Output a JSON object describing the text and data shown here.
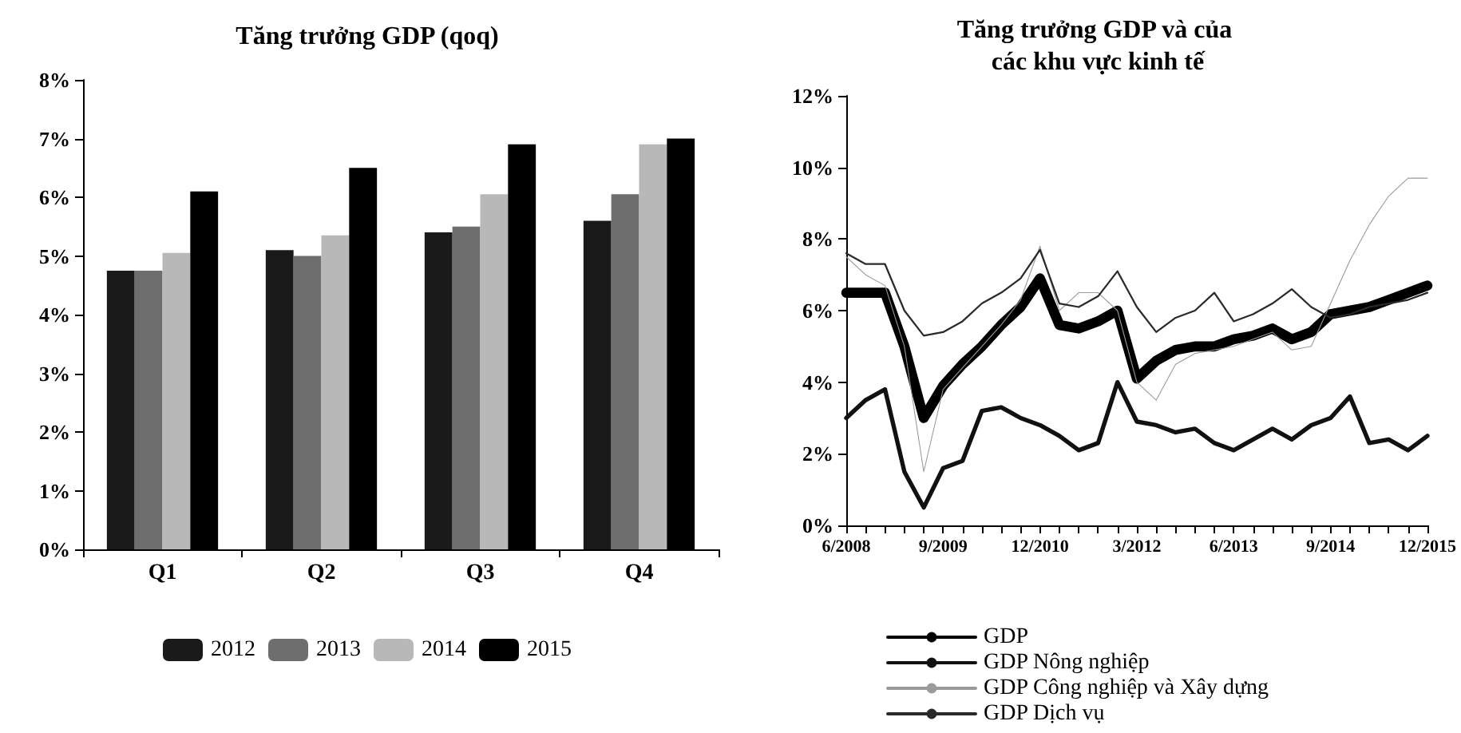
{
  "chart_data": [
    {
      "type": "bar",
      "title": "Tăng trưởng GDP (qoq)",
      "categories": [
        "Q1",
        "Q2",
        "Q3",
        "Q4"
      ],
      "series": [
        {
          "name": "2012",
          "color": "#1a1a1a",
          "values": [
            4.75,
            5.1,
            5.4,
            5.6
          ]
        },
        {
          "name": "2013",
          "color": "#6e6e6e",
          "values": [
            4.75,
            5.0,
            5.5,
            6.05
          ]
        },
        {
          "name": "2014",
          "color": "#b8b8b8",
          "values": [
            5.05,
            5.35,
            6.05,
            6.9
          ]
        },
        {
          "name": "2015",
          "color": "#000000",
          "values": [
            6.1,
            6.5,
            6.9,
            7.0
          ]
        }
      ],
      "ylim": [
        0,
        8
      ],
      "yticks": [
        {
          "value": 0,
          "label": "0%"
        },
        {
          "value": 1,
          "label": "1%"
        },
        {
          "value": 2,
          "label": "2%"
        },
        {
          "value": 3,
          "label": "3%"
        },
        {
          "value": 4,
          "label": "4%"
        },
        {
          "value": 5,
          "label": "5%"
        },
        {
          "value": 6,
          "label": "6%"
        },
        {
          "value": 7,
          "label": "7%"
        },
        {
          "value": 8,
          "label": "8%"
        }
      ],
      "grid": false,
      "legend": "bottom"
    },
    {
      "type": "line",
      "title": "Tăng trưởng GDP và của các khu vực kinh tế",
      "categories": [
        "6/2008",
        null,
        null,
        null,
        null,
        "9/2009",
        null,
        null,
        null,
        null,
        "12/2010",
        null,
        null,
        null,
        null,
        "3/2012",
        null,
        null,
        null,
        null,
        "6/2013",
        null,
        null,
        null,
        null,
        "9/2014",
        null,
        null,
        null,
        null,
        "12/2015"
      ],
      "series": [
        {
          "name": "GDP",
          "color": "#000000",
          "values": [
            6.5,
            6.5,
            6.5,
            5.0,
            3.0,
            3.9,
            4.5,
            5.0,
            5.6,
            6.1,
            6.9,
            5.6,
            5.5,
            5.7,
            6.0,
            4.1,
            4.6,
            4.9,
            5.0,
            5.0,
            5.2,
            5.3,
            5.5,
            5.2,
            5.4,
            5.9,
            6.0,
            6.1,
            6.3,
            6.5,
            6.7
          ]
        },
        {
          "name": "GDP Nông nghiệp",
          "color": "#111111",
          "values": [
            3.0,
            3.5,
            3.8,
            1.5,
            0.5,
            1.6,
            1.8,
            3.2,
            3.3,
            3.0,
            2.8,
            2.5,
            2.1,
            2.3,
            4.0,
            2.9,
            2.8,
            2.6,
            2.7,
            2.3,
            2.1,
            2.4,
            2.7,
            2.4,
            2.8,
            3.0,
            3.6,
            2.3,
            2.4,
            2.1,
            2.5
          ]
        },
        {
          "name": "GDP Công nghiệp và Xây dựng",
          "color": "#9a9a9a",
          "values": [
            7.5,
            7.0,
            6.7,
            5.0,
            1.5,
            3.8,
            4.4,
            5.0,
            5.6,
            6.3,
            7.8,
            6.0,
            6.5,
            6.5,
            6.0,
            4.0,
            3.5,
            4.5,
            4.8,
            4.9,
            5.0,
            5.2,
            5.4,
            4.9,
            5.0,
            6.2,
            7.4,
            8.4,
            9.2,
            9.7,
            9.7
          ]
        },
        {
          "name": "GDP Dịch vụ",
          "color": "#2a2a2a",
          "values": [
            7.6,
            7.3,
            7.3,
            6.0,
            5.3,
            5.4,
            5.7,
            6.2,
            6.5,
            6.9,
            7.7,
            6.2,
            6.1,
            6.4,
            7.1,
            6.1,
            5.4,
            5.8,
            6.0,
            6.5,
            5.7,
            5.9,
            6.2,
            6.6,
            6.1,
            5.8,
            5.9,
            6.1,
            6.2,
            6.3,
            6.5
          ]
        }
      ],
      "ylim": [
        0,
        12
      ],
      "yticks": [
        {
          "value": 0,
          "label": "0%"
        },
        {
          "value": 2,
          "label": "2%"
        },
        {
          "value": 4,
          "label": "4%"
        },
        {
          "value": 6,
          "label": "6%"
        },
        {
          "value": 8,
          "label": "8%"
        },
        {
          "value": 10,
          "label": "10%"
        },
        {
          "value": 12,
          "label": "12%"
        }
      ],
      "grid": false,
      "legend": "bottom",
      "marker": "none",
      "line_style": "solid"
    }
  ]
}
